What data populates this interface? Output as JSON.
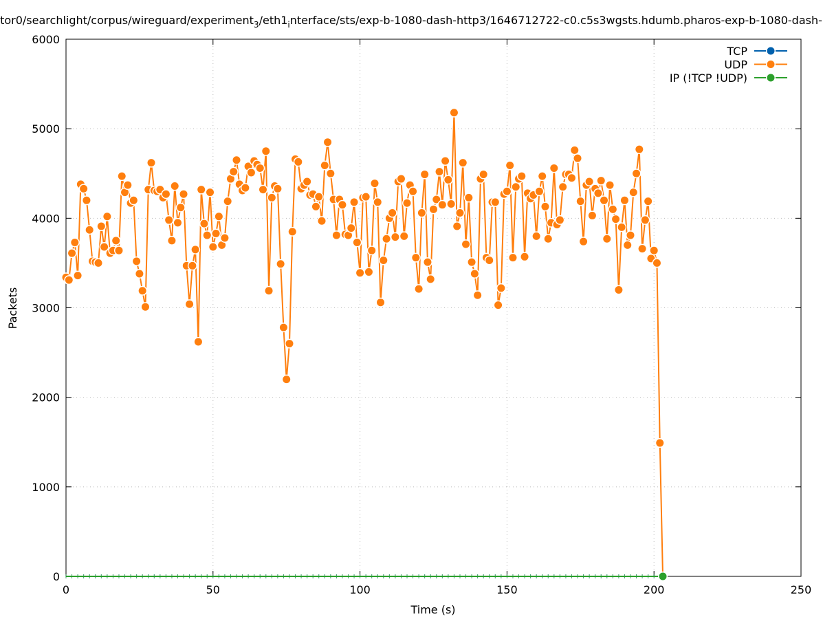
{
  "chart_data": {
    "type": "line",
    "title": {
      "part1": "tor0/searchlight/corpus/wireguard/experiment",
      "sub1": "3",
      "part2": "/eth1",
      "sub2": "i",
      "part3": "nterface/sts/exp-b-1080-dash-http3/1646712722-c0.c5s3wgsts.hdumb.pharos-exp-b-1080-dash-"
    },
    "xlabel": "Time (s)",
    "ylabel": "Packets",
    "xlim": [
      0,
      250
    ],
    "ylim": [
      0,
      6000
    ],
    "xticks": [
      "0",
      "50",
      "100",
      "150",
      "200",
      "250"
    ],
    "yticks": [
      "0",
      "1000",
      "2000",
      "3000",
      "4000",
      "5000",
      "6000"
    ],
    "grid": true,
    "legend_position": "top-right",
    "series": [
      {
        "name": "TCP",
        "color": "#0060ad",
        "constant_value": 0,
        "x_range": [
          0,
          203
        ]
      },
      {
        "name": "UDP",
        "color": "#ff7f0e",
        "values": [
          3340,
          3310,
          3610,
          3730,
          3360,
          4380,
          4330,
          4200,
          3870,
          3520,
          3510,
          3500,
          3910,
          3680,
          4020,
          3610,
          3640,
          3750,
          3640,
          4470,
          4290,
          4370,
          4170,
          4200,
          3520,
          3380,
          3190,
          3010,
          4320,
          4620,
          4310,
          4300,
          4320,
          4230,
          4270,
          3980,
          3750,
          4360,
          3950,
          4120,
          4270,
          3470,
          3040,
          3470,
          3650,
          2620,
          4320,
          3940,
          3810,
          4290,
          3680,
          3830,
          4020,
          3700,
          3780,
          4190,
          4440,
          4520,
          4650,
          4380,
          4310,
          4340,
          4580,
          4510,
          4640,
          4600,
          4560,
          4320,
          4750,
          3190,
          4230,
          4360,
          4330,
          3490,
          2780,
          2200,
          2600,
          3850,
          4660,
          4630,
          4330,
          4370,
          4410,
          4260,
          4270,
          4130,
          4240,
          3970,
          4590,
          4850,
          4500,
          4210,
          3810,
          4210,
          4150,
          3820,
          3810,
          3890,
          4180,
          3730,
          3390,
          4230,
          4240,
          3400,
          3640,
          4390,
          4180,
          3060,
          3530,
          3770,
          4000,
          4060,
          3790,
          4410,
          4440,
          3800,
          4170,
          4370,
          4300,
          3560,
          3210,
          4060,
          4490,
          3510,
          3320,
          4100,
          4210,
          4520,
          4150,
          4640,
          4430,
          4160,
          5180,
          3910,
          4060,
          4620,
          3710,
          4230,
          3510,
          3380,
          3140,
          4440,
          4490,
          3560,
          3530,
          4180,
          4180,
          3030,
          3220,
          4270,
          4300,
          4590,
          3560,
          4350,
          4440,
          4470,
          3570,
          4280,
          4220,
          4260,
          3800,
          4300,
          4470,
          4130,
          3770,
          3950,
          4560,
          3930,
          3980,
          4350,
          4490,
          4490,
          4450,
          4760,
          4670,
          4190,
          3740,
          4370,
          4410,
          4030,
          4330,
          4280,
          4420,
          4200,
          3770,
          4370,
          4100,
          3990,
          3200,
          3900,
          4200,
          3700,
          3810,
          4290,
          4500,
          4770,
          3660,
          3980,
          4190,
          3550,
          3640,
          3500,
          1490,
          0
        ]
      },
      {
        "name": "IP (!TCP  !UDP)",
        "color": "#2ca02c",
        "constant_value": 0,
        "x_range": [
          0,
          203
        ]
      }
    ]
  }
}
